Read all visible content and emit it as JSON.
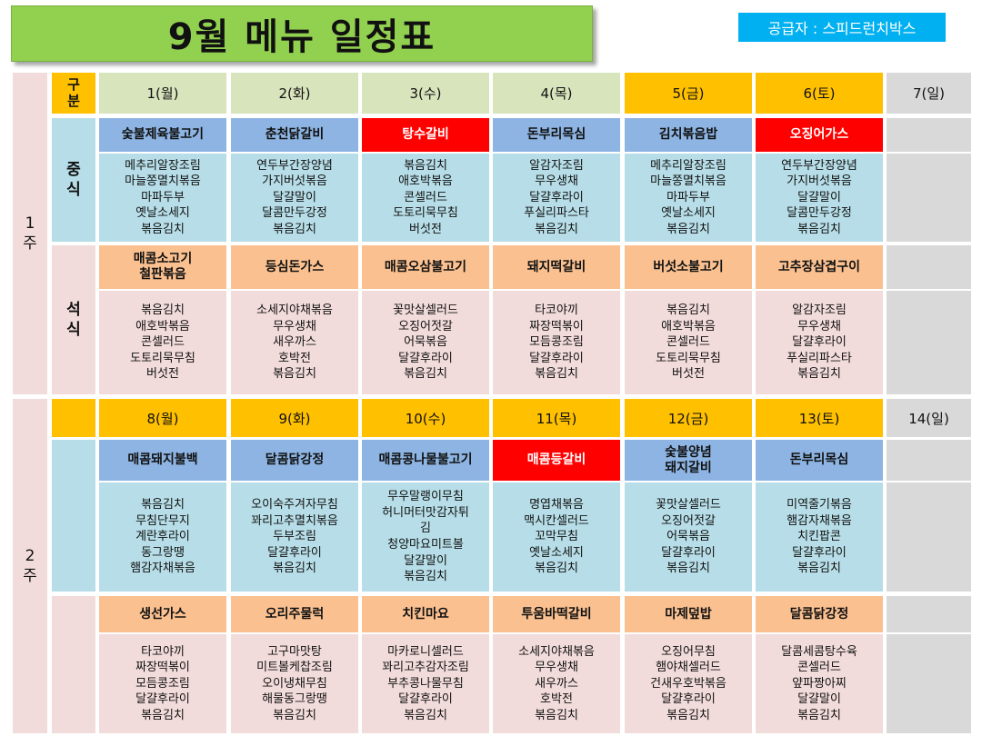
{
  "title": "9월  메뉴 일정표",
  "supplier": "공급자 : 스피드런치박스",
  "gubun": "구\n분",
  "weeks": [
    {
      "label": "1\n주",
      "days": [
        "1(월)",
        "2(화)",
        "3(수)",
        "4(목)",
        "5(금)",
        "6(토)",
        "7(일)"
      ],
      "lunch_label": "중\n식",
      "dinner_label": "석\n식",
      "lunch_mains": [
        "숯불제육불고기",
        "춘천닭갈비",
        "탕수갈비",
        "돈부리목심",
        "김치볶음밥",
        "오징어가스"
      ],
      "lunch_sides": [
        "메추리알장조림\n마늘쫑멸치볶음\n마파두부\n옛날소세지\n볶음김치",
        "연두부간장양념\n가지버섯볶음\n달걀말이\n달콤만두강정\n볶음김치",
        "볶음김치\n애호박볶음\n콘셀러드\n도토리묵무침\n버섯전",
        "알감자조림\n무우생채\n달걀후라이\n푸실리파스타\n볶음김치",
        "메추리알장조림\n마늘쫑멸치볶음\n마파두부\n옛날소세지\n볶음김치",
        "연두부간장양념\n가지버섯볶음\n달걀말이\n달콤만두강정\n볶음김치"
      ],
      "dinner_mains": [
        "매콤소고기\n철판볶음",
        "등심돈가스",
        "매콤오삼불고기",
        "돼지떡갈비",
        "버섯소불고기",
        "고추장삼겹구이"
      ],
      "dinner_sides": [
        "볶음김치\n애호박볶음\n콘셀러드\n도토리묵무침\n버섯전",
        "소세지야채볶음\n무우생채\n새우까스\n호박전\n볶음김치",
        "꽃맛살셀러드\n오징어젓갈\n어묵볶음\n달걀후라이\n볶음김치",
        "타코야끼\n짜장떡볶이\n모듬콩조림\n달걀후라이\n볶음김치",
        "볶음김치\n애호박볶음\n콘셀러드\n도토리묵무침\n버섯전",
        "알감자조림\n무우생채\n달걀후라이\n푸실리파스타\n볶음김치"
      ]
    },
    {
      "label": "2\n주",
      "days": [
        "8(월)",
        "9(화)",
        "10(수)",
        "11(목)",
        "12(금)",
        "13(토)",
        "14(일)"
      ],
      "lunch_mains": [
        "매콤돼지불백",
        "달콤닭강정",
        "매콤콩나물불고기",
        "매콤등갈비",
        "숯불양념\n돼지갈비",
        "돈부리목심"
      ],
      "lunch_sides": [
        "볶음김치\n무침단무지\n계란후라이\n동그랑땡\n햄감자채볶음",
        "오이숙주겨자무침\n꽈리고추멸치볶음\n두부조림\n달걀후라이\n볶음김치",
        "무우말랭이무침\n허니머터맛감자튀\n김\n청양마요미트볼\n달걀말이\n볶음김치",
        "명엽채볶음\n맥시칸셀러드\n꼬막무침\n옛날소세지\n볶음김치",
        "꽃맛살셀러드\n오징어젓갈\n어묵볶음\n달걀후라이\n볶음김치",
        "미역줄기볶음\n햄감자채볶음\n치킨팝콘\n달걀후라이\n볶음김치"
      ],
      "dinner_mains": [
        "생선가스",
        "오리주물럭",
        "치킨마요",
        "투움바떡갈비",
        "마제덮밥",
        "달콤닭강정"
      ],
      "dinner_sides": [
        "타코야끼\n짜장떡볶이\n모듬콩조림\n달걀후라이\n볶음김치",
        "고구마맛탕\n미트볼케찹조림\n오이냉채무침\n해물동그랑땡\n볶음김치",
        "마카로니셀러드\n꽈리고추감자조림\n부추콩나물무침\n달걀후라이\n볶음김치",
        "소세지야채볶음\n무우생채\n새우까스\n호박전\n볶음김치",
        "오징어무침\n햄야채셀러드\n건새우호박볶음\n달걀후라이\n볶음김치",
        "달콤세콤탕수육\n콘셀러드\n얖파짱아찌\n달걀말이\n볶음김치"
      ]
    }
  ],
  "colors": {
    "title_bg": "#92d050",
    "supplier_bg": "#00b0f0",
    "weekday_header": "#d8e4bc",
    "weekend_header": "#ffc000",
    "sunday_header": "#d9d9d9",
    "main_blue": "#8db4e2",
    "main_red": "#ff0000",
    "main_orange": "#fac090",
    "lunch_side": "#b7dee8",
    "dinner_side": "#f2dcdb"
  }
}
